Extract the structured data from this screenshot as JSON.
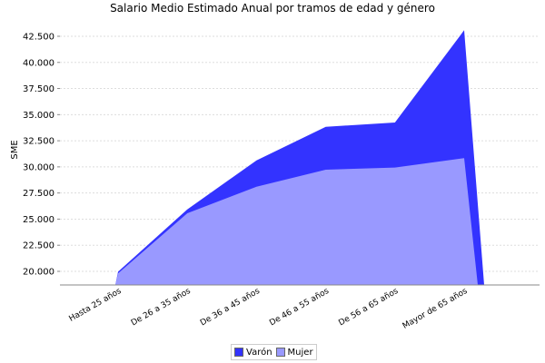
{
  "chart_data": {
    "type": "area",
    "title": "Salario Medio Estimado Anual por tramos de edad y género",
    "xlabel": "",
    "ylabel": "SME",
    "categories": [
      "Hasta 25  años",
      "De 26  a 35  años",
      "De 36  a 45  años",
      "De 46  a 55  años",
      "De 56  a 65  años",
      "Mayor de 65  años"
    ],
    "ylim": [
      18700,
      44000
    ],
    "yticks": [
      20000,
      22500,
      25000,
      27500,
      30000,
      32500,
      35000,
      37500,
      40000,
      42500
    ],
    "ytick_labels": [
      "20.000",
      "22.500",
      "25.000",
      "27.500",
      "30.000",
      "32.500",
      "35.000",
      "37.500",
      "40.000",
      "42.500"
    ],
    "grid": true,
    "legend": "bottom",
    "series": [
      {
        "name": "Varón",
        "color": "#3333FF",
        "values": [
          19970,
          25930,
          30620,
          33830,
          34250,
          43080
        ]
      },
      {
        "name": "Mujer",
        "color": "#9999FF",
        "values": [
          19800,
          25560,
          28100,
          29730,
          29930,
          30840
        ]
      }
    ]
  }
}
